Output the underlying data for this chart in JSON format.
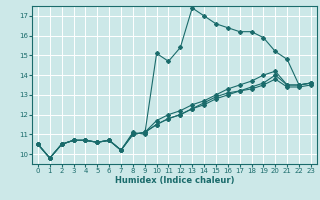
{
  "title": "",
  "xlabel": "Humidex (Indice chaleur)",
  "ylabel": "",
  "bg_color": "#cce8e8",
  "grid_color": "#ffffff",
  "line_color": "#1a6b6b",
  "xlim": [
    -0.5,
    23.5
  ],
  "ylim": [
    9.5,
    17.5
  ],
  "xticks": [
    0,
    1,
    2,
    3,
    4,
    5,
    6,
    7,
    8,
    9,
    10,
    11,
    12,
    13,
    14,
    15,
    16,
    17,
    18,
    19,
    20,
    21,
    22,
    23
  ],
  "yticks": [
    10,
    11,
    12,
    13,
    14,
    15,
    16,
    17
  ],
  "lines": [
    [
      10.5,
      9.8,
      10.5,
      10.7,
      10.7,
      10.6,
      10.7,
      10.2,
      11.1,
      11.0,
      15.1,
      14.7,
      15.4,
      17.4,
      17.0,
      16.6,
      16.4,
      16.2,
      16.2,
      15.9,
      15.2,
      14.8,
      13.5,
      13.6
    ],
    [
      10.5,
      9.8,
      10.5,
      10.7,
      10.7,
      10.6,
      10.7,
      10.2,
      11.0,
      11.1,
      11.7,
      12.0,
      12.2,
      12.5,
      12.7,
      13.0,
      13.3,
      13.5,
      13.7,
      14.0,
      14.2,
      13.5,
      13.5,
      13.6
    ],
    [
      10.5,
      9.8,
      10.5,
      10.7,
      10.7,
      10.6,
      10.7,
      10.2,
      11.0,
      11.1,
      11.5,
      11.8,
      12.0,
      12.3,
      12.6,
      12.9,
      13.1,
      13.2,
      13.4,
      13.6,
      14.0,
      13.5,
      13.5,
      13.6
    ],
    [
      10.5,
      9.8,
      10.5,
      10.7,
      10.7,
      10.6,
      10.7,
      10.2,
      11.0,
      11.1,
      11.5,
      11.8,
      12.0,
      12.3,
      12.5,
      12.8,
      13.0,
      13.2,
      13.3,
      13.5,
      13.8,
      13.4,
      13.4,
      13.5
    ]
  ]
}
